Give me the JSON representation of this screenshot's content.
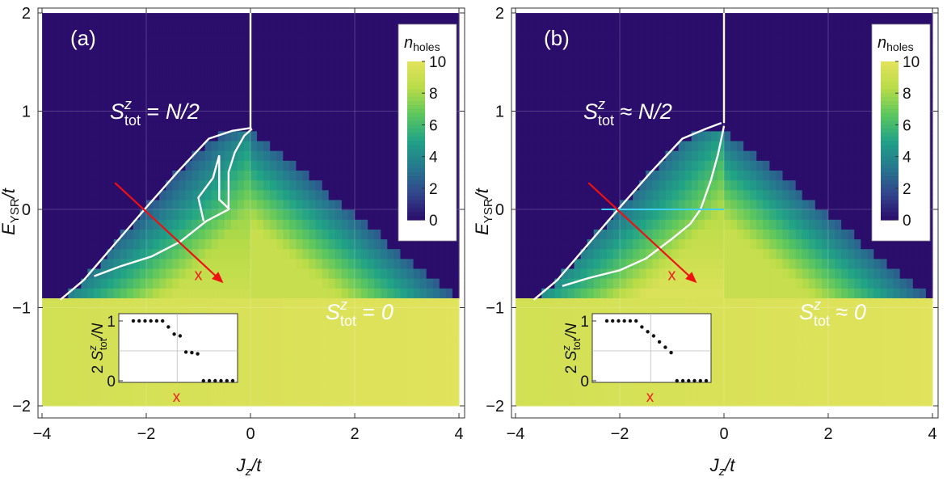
{
  "chart_data": [
    {
      "type": "heatmap",
      "panel_label": "(a)",
      "x": {
        "label_main": "J",
        "label_sub": "z",
        "label_tail": "/t",
        "lim": [
          -4,
          4
        ],
        "ticks": [
          -4,
          -2,
          0,
          2,
          4
        ],
        "tick_labels": [
          "−4",
          "−2",
          "0",
          "2",
          "4"
        ]
      },
      "y": {
        "label_main": "E",
        "label_sub": "YSR",
        "label_tail": "/t",
        "lim": [
          -2,
          2
        ],
        "ticks": [
          -2,
          -1,
          0,
          1,
          2
        ],
        "tick_labels": [
          "−2",
          "−1",
          "0",
          "1",
          "2"
        ]
      },
      "colorbar": {
        "title_main": "n",
        "title_sub": "holes",
        "range": [
          0,
          10
        ],
        "ticks": [
          0,
          2,
          4,
          6,
          8,
          10
        ],
        "tick_labels": [
          "0",
          "2",
          "4",
          "6",
          "8",
          "10"
        ],
        "colors": [
          "#2b0d6b",
          "#31468c",
          "#26788e",
          "#21a386",
          "#5ec75d",
          "#b9dc47",
          "#e3e35d"
        ]
      },
      "annotations": {
        "upper_region": {
          "s": "S",
          "sup": "z",
          "sub": "tot",
          "rel": " = ",
          "val": "N/2"
        },
        "lower_region": {
          "s": "S",
          "sup": "z",
          "sub": "tot",
          "rel": " = ",
          "val": "0"
        },
        "cut_marker": "x"
      },
      "arrow": {
        "from": [
          -2.6,
          0.27
        ],
        "to": [
          -0.52,
          -0.75
        ]
      },
      "boundaries": {
        "vertical_line": {
          "x": 0,
          "y": [
            0.83,
            2
          ]
        },
        "outer_cliff": [
          [
            -3.65,
            -0.92
          ],
          [
            -3.2,
            -0.72
          ],
          [
            -2.6,
            -0.35
          ],
          [
            -2.0,
            0.02
          ],
          [
            -1.4,
            0.38
          ],
          [
            -0.8,
            0.72
          ],
          [
            -0.35,
            0.8
          ],
          [
            0.02,
            0.83
          ]
        ],
        "inner_loop": [
          [
            -3.0,
            -0.68
          ],
          [
            -2.5,
            -0.58
          ],
          [
            -1.9,
            -0.48
          ],
          [
            -1.35,
            -0.33
          ],
          [
            -0.85,
            -0.12
          ],
          [
            -0.42,
            0.0
          ],
          [
            -0.42,
            0.38
          ],
          [
            -0.3,
            0.58
          ],
          [
            -0.12,
            0.75
          ],
          [
            0.03,
            0.82
          ]
        ],
        "inner_notch": [
          [
            -0.6,
            0.55
          ],
          [
            -0.6,
            0.1
          ],
          [
            -0.4,
            0.0
          ]
        ],
        "inner_branch": [
          [
            -0.9,
            -0.12
          ],
          [
            -1.0,
            0.12
          ],
          [
            -0.72,
            0.32
          ],
          [
            -0.6,
            0.55
          ]
        ]
      },
      "inset": {
        "ylabel": {
          "pre": "2 ",
          "s": "S",
          "sup": "z",
          "sub": "tot",
          "post": "/N"
        },
        "x_marker": "x",
        "yticks": [
          0,
          1
        ],
        "ytick_labels": [
          "0",
          "1"
        ],
        "points": [
          [
            0,
            1
          ],
          [
            1,
            1
          ],
          [
            2,
            1
          ],
          [
            3,
            1
          ],
          [
            4,
            1
          ],
          [
            5,
            1
          ],
          [
            6,
            0.9
          ],
          [
            7,
            0.78
          ],
          [
            8,
            0.75
          ],
          [
            9,
            0.48
          ],
          [
            10,
            0.47
          ],
          [
            11,
            0.45
          ],
          [
            12,
            0
          ],
          [
            13,
            0
          ],
          [
            14,
            0
          ],
          [
            15,
            0
          ],
          [
            16,
            0
          ],
          [
            17,
            0
          ]
        ]
      }
    },
    {
      "type": "heatmap",
      "panel_label": "(b)",
      "x": {
        "label_main": "J",
        "label_sub": "z",
        "label_tail": "/t",
        "lim": [
          -4,
          4
        ],
        "ticks": [
          -4,
          -2,
          0,
          2,
          4
        ],
        "tick_labels": [
          "−4",
          "−2",
          "0",
          "2",
          "4"
        ]
      },
      "y": {
        "label_main": "E",
        "label_sub": "YSR",
        "label_tail": "/t",
        "lim": [
          -2,
          2
        ],
        "ticks": [
          -2,
          -1,
          0,
          1,
          2
        ],
        "tick_labels": [
          "−2",
          "−1",
          "0",
          "1",
          "2"
        ]
      },
      "colorbar": {
        "title_main": "n",
        "title_sub": "holes",
        "range": [
          0,
          10
        ],
        "ticks": [
          0,
          2,
          4,
          6,
          8,
          10
        ],
        "tick_labels": [
          "0",
          "2",
          "4",
          "6",
          "8",
          "10"
        ],
        "colors": [
          "#2b0d6b",
          "#31468c",
          "#26788e",
          "#21a386",
          "#5ec75d",
          "#b9dc47",
          "#e3e35d"
        ]
      },
      "annotations": {
        "upper_region": {
          "s": "S",
          "sup": "z",
          "sub": "tot",
          "rel": " ≈ ",
          "val": "N/2"
        },
        "lower_region": {
          "s": "S",
          "sup": "z",
          "sub": "tot",
          "rel": " ≈ ",
          "val": "0"
        },
        "cut_marker": "x"
      },
      "arrow": {
        "from": [
          -2.6,
          0.27
        ],
        "to": [
          -0.52,
          -0.75
        ]
      },
      "cut_line": {
        "x": [
          -2.35,
          0.0
        ],
        "y": 0
      },
      "boundaries": {
        "vertical_line": {
          "x": 0,
          "y": [
            0.88,
            2
          ]
        },
        "outer_cliff": [
          [
            -3.65,
            -0.92
          ],
          [
            -3.2,
            -0.72
          ],
          [
            -2.6,
            -0.35
          ],
          [
            -2.0,
            0.02
          ],
          [
            -1.4,
            0.38
          ],
          [
            -0.8,
            0.72
          ],
          [
            -0.35,
            0.82
          ],
          [
            -0.05,
            0.88
          ]
        ],
        "inner_loop": [
          [
            -3.1,
            -0.78
          ],
          [
            -2.6,
            -0.7
          ],
          [
            -2.0,
            -0.62
          ],
          [
            -1.5,
            -0.5
          ],
          [
            -1.0,
            -0.3
          ],
          [
            -0.65,
            -0.15
          ],
          [
            -0.45,
            0.0
          ],
          [
            -0.25,
            0.3
          ],
          [
            -0.12,
            0.55
          ],
          [
            -0.05,
            0.72
          ],
          [
            0.0,
            0.85
          ]
        ]
      },
      "inset": {
        "ylabel": {
          "pre": "2 ",
          "s": "S",
          "sup": "z",
          "sub": "tot",
          "post": "/N"
        },
        "x_marker": "x",
        "yticks": [
          0,
          1
        ],
        "ytick_labels": [
          "0",
          "1"
        ],
        "points": [
          [
            0,
            1
          ],
          [
            1,
            1
          ],
          [
            2,
            1
          ],
          [
            3,
            1
          ],
          [
            4,
            1
          ],
          [
            5,
            1
          ],
          [
            6,
            0.9
          ],
          [
            7,
            0.82
          ],
          [
            8,
            0.75
          ],
          [
            9,
            0.65
          ],
          [
            10,
            0.56
          ],
          [
            11,
            0.47
          ],
          [
            12,
            0
          ],
          [
            13,
            0
          ],
          [
            14,
            0
          ],
          [
            15,
            0
          ],
          [
            16,
            0
          ],
          [
            17,
            0
          ]
        ]
      }
    }
  ]
}
